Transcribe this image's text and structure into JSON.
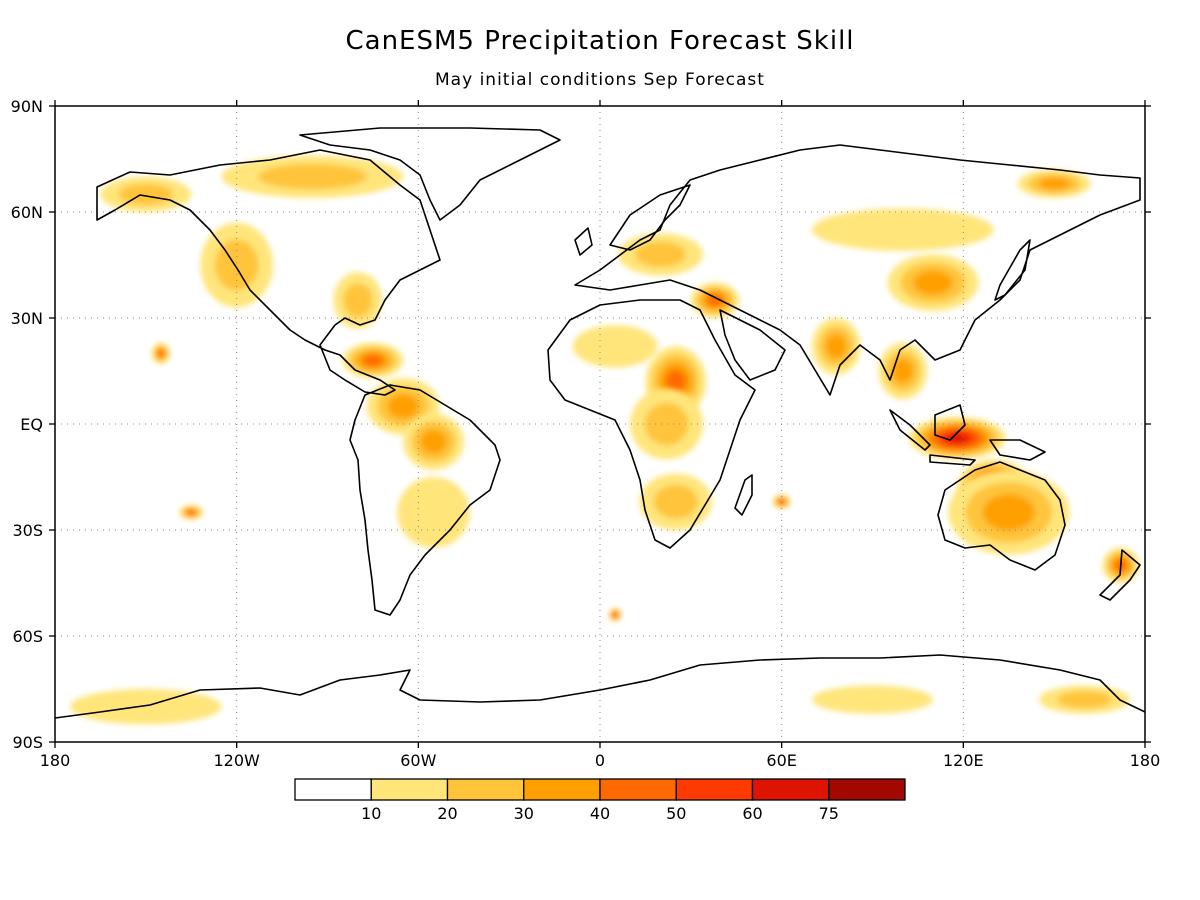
{
  "title": "CanESM5 Precipitation Forecast Skill",
  "subtitle": "May initial conditions  Sep Forecast",
  "axes": {
    "lon_ticks": [
      {
        "value": -180,
        "label": "180"
      },
      {
        "value": -120,
        "label": "120W"
      },
      {
        "value": -60,
        "label": "60W"
      },
      {
        "value": 0,
        "label": "0"
      },
      {
        "value": 60,
        "label": "60E"
      },
      {
        "value": 120,
        "label": "120E"
      },
      {
        "value": 180,
        "label": "180"
      }
    ],
    "lat_ticks": [
      {
        "value": 90,
        "label": "90N"
      },
      {
        "value": 60,
        "label": "60N"
      },
      {
        "value": 30,
        "label": "30N"
      },
      {
        "value": 0,
        "label": "EQ"
      },
      {
        "value": -30,
        "label": "30S"
      },
      {
        "value": -60,
        "label": "60S"
      },
      {
        "value": -90,
        "label": "90S"
      }
    ],
    "lon_range": [
      -180,
      180
    ],
    "lat_range": [
      -90,
      90
    ],
    "grid": "dotted"
  },
  "colorbar": {
    "levels": [
      "10",
      "20",
      "30",
      "40",
      "50",
      "60",
      "75"
    ],
    "colors": [
      "#ffffff",
      "#ffe57a",
      "#ffc43a",
      "#ffa000",
      "#ff6a00",
      "#ff3a00",
      "#dd1500",
      "#a00800"
    ]
  },
  "skill_regions": [
    {
      "name": "maritime-continent",
      "lon": 118,
      "lat": -4,
      "rlon": 16,
      "rlat": 6,
      "level": 6
    },
    {
      "name": "north-australia",
      "lon": 130,
      "lat": -18,
      "rlon": 12,
      "rlat": 8,
      "level": 6
    },
    {
      "name": "australia-wide",
      "lon": 135,
      "lat": -25,
      "rlon": 20,
      "rlat": 12,
      "level": 3
    },
    {
      "name": "east-africa-sahel",
      "lon": 25,
      "lat": 12,
      "rlon": 10,
      "rlat": 10,
      "level": 4
    },
    {
      "name": "central-africa",
      "lon": 22,
      "lat": 0,
      "rlon": 12,
      "rlat": 10,
      "level": 2
    },
    {
      "name": "southern-africa",
      "lon": 25,
      "lat": -22,
      "rlon": 12,
      "rlat": 8,
      "level": 2
    },
    {
      "name": "caribbean",
      "lon": -75,
      "lat": 18,
      "rlon": 10,
      "rlat": 5,
      "level": 4
    },
    {
      "name": "northern-south-america",
      "lon": -65,
      "lat": 5,
      "rlon": 12,
      "rlat": 8,
      "level": 3
    },
    {
      "name": "amazon",
      "lon": -55,
      "lat": -5,
      "rlon": 10,
      "rlat": 8,
      "level": 3
    },
    {
      "name": "south-america",
      "lon": -55,
      "lat": -25,
      "rlon": 12,
      "rlat": 10,
      "level": 1
    },
    {
      "name": "western-north-america",
      "lon": -120,
      "lat": 45,
      "rlon": 12,
      "rlat": 12,
      "level": 2
    },
    {
      "name": "alaska",
      "lon": -150,
      "lat": 65,
      "rlon": 15,
      "rlat": 5,
      "level": 2
    },
    {
      "name": "canada-north",
      "lon": -95,
      "lat": 70,
      "rlon": 30,
      "rlat": 6,
      "level": 2
    },
    {
      "name": "eastern-usa",
      "lon": -80,
      "lat": 35,
      "rlon": 8,
      "rlat": 8,
      "level": 2
    },
    {
      "name": "europe",
      "lon": 20,
      "lat": 48,
      "rlon": 14,
      "rlat": 6,
      "level": 2
    },
    {
      "name": "middle-east",
      "lon": 38,
      "lat": 35,
      "rlon": 8,
      "rlat": 5,
      "level": 4
    },
    {
      "name": "north-africa",
      "lon": 5,
      "lat": 22,
      "rlon": 14,
      "rlat": 6,
      "level": 1
    },
    {
      "name": "india",
      "lon": 78,
      "lat": 22,
      "rlon": 8,
      "rlat": 8,
      "level": 3
    },
    {
      "name": "southeast-asia",
      "lon": 100,
      "lat": 15,
      "rlon": 8,
      "rlat": 8,
      "level": 3
    },
    {
      "name": "china",
      "lon": 110,
      "lat": 40,
      "rlon": 15,
      "rlat": 8,
      "level": 3
    },
    {
      "name": "siberia",
      "lon": 100,
      "lat": 55,
      "rlon": 30,
      "rlat": 6,
      "level": 1
    },
    {
      "name": "east-siberia",
      "lon": 150,
      "lat": 68,
      "rlon": 12,
      "rlat": 4,
      "level": 3
    },
    {
      "name": "new-zealand",
      "lon": 172,
      "lat": -40,
      "rlon": 6,
      "rlat": 5,
      "level": 4
    },
    {
      "name": "pacific-east",
      "lon": -145,
      "lat": 20,
      "rlon": 3,
      "rlat": 3,
      "level": 4
    },
    {
      "name": "south-pacific",
      "lon": -135,
      "lat": -25,
      "rlon": 4,
      "rlat": 2,
      "level": 4
    },
    {
      "name": "indian-ocean",
      "lon": 60,
      "lat": -22,
      "rlon": 3,
      "rlat": 2,
      "level": 4
    },
    {
      "name": "southern-ocean",
      "lon": 5,
      "lat": -54,
      "rlon": 2,
      "rlat": 2,
      "level": 4
    },
    {
      "name": "antarctica-west",
      "lon": -150,
      "lat": -80,
      "rlon": 25,
      "rlat": 5,
      "level": 1
    },
    {
      "name": "antarctica-east",
      "lon": 90,
      "lat": -78,
      "rlon": 20,
      "rlat": 4,
      "level": 1
    },
    {
      "name": "antarctica-ross",
      "lon": 160,
      "lat": -78,
      "rlon": 15,
      "rlat": 4,
      "level": 2
    }
  ]
}
